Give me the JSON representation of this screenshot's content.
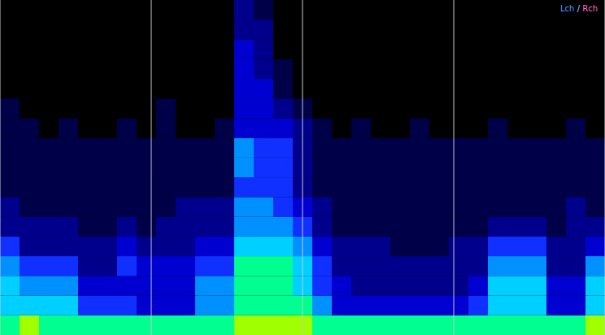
{
  "chart_data": {
    "type": "heatmap",
    "xlim": [
      0,
      4
    ],
    "xticks": [
      0,
      1,
      2,
      3,
      4
    ],
    "ylim": [
      0,
      17
    ],
    "yticks": [
      0,
      17
    ],
    "grid": "x",
    "tick_labels": false,
    "zlim": [
      0,
      10
    ],
    "colors": [
      "#000000",
      "#000048",
      "#00008c",
      "#0000d0",
      "#1030ff",
      "#0090ff",
      "#00d0ff",
      "#00ff90",
      "#a0ff00",
      "#ffff00",
      "#ff2000"
    ],
    "annotations": [
      {
        "text": "Lch",
        "color": "#4f9cff"
      },
      {
        "text": " / ",
        "color": "#c8c8ff"
      },
      {
        "text": "Rch",
        "color": "#ff6ec7"
      }
    ],
    "cells": [
      [
        7,
        8,
        7,
        7,
        7,
        7,
        7,
        7,
        7,
        7,
        7,
        7,
        8,
        8,
        8,
        8,
        7,
        7,
        7,
        7,
        7,
        7,
        7,
        7,
        7,
        7,
        7,
        7,
        7,
        7,
        8
      ],
      [
        6,
        6,
        6,
        6,
        4,
        4,
        4,
        3,
        3,
        3,
        5,
        5,
        7,
        7,
        7,
        7,
        5,
        3,
        3,
        3,
        3,
        3,
        3,
        3,
        4,
        6,
        6,
        6,
        3,
        3,
        6
      ],
      [
        6,
        5,
        5,
        5,
        3,
        3,
        3,
        3,
        3,
        3,
        5,
        5,
        7,
        7,
        7,
        6,
        4,
        3,
        2,
        2,
        2,
        2,
        2,
        2,
        3,
        6,
        6,
        6,
        3,
        3,
        6
      ],
      [
        5,
        4,
        4,
        4,
        2,
        2,
        4,
        3,
        3,
        3,
        4,
        4,
        7,
        7,
        7,
        6,
        4,
        2,
        2,
        2,
        2,
        2,
        2,
        2,
        2,
        5,
        5,
        5,
        2,
        2,
        5
      ],
      [
        4,
        2,
        2,
        2,
        2,
        2,
        3,
        2,
        2,
        2,
        3,
        3,
        6,
        6,
        6,
        5,
        3,
        2,
        2,
        2,
        1,
        1,
        1,
        2,
        2,
        4,
        4,
        4,
        2,
        2,
        3
      ],
      [
        2,
        2,
        2,
        2,
        1,
        1,
        2,
        1,
        2,
        2,
        2,
        2,
        5,
        5,
        5,
        4,
        2,
        1,
        1,
        1,
        1,
        1,
        1,
        1,
        1,
        2,
        2,
        2,
        1,
        2,
        2
      ],
      [
        2,
        1,
        1,
        1,
        1,
        1,
        1,
        1,
        1,
        2,
        2,
        2,
        5,
        5,
        4,
        3,
        2,
        1,
        1,
        1,
        1,
        1,
        1,
        1,
        1,
        1,
        1,
        1,
        1,
        2,
        1
      ],
      [
        1,
        1,
        1,
        1,
        1,
        1,
        1,
        1,
        1,
        1,
        1,
        1,
        4,
        4,
        4,
        2,
        1,
        1,
        1,
        1,
        1,
        1,
        1,
        1,
        1,
        1,
        1,
        1,
        1,
        1,
        1
      ],
      [
        1,
        1,
        1,
        1,
        1,
        1,
        1,
        1,
        1,
        1,
        1,
        1,
        5,
        4,
        4,
        2,
        1,
        1,
        1,
        1,
        1,
        1,
        1,
        1,
        1,
        1,
        1,
        1,
        1,
        1,
        1
      ],
      [
        1,
        1,
        1,
        1,
        1,
        1,
        1,
        1,
        1,
        1,
        1,
        1,
        5,
        4,
        4,
        2,
        1,
        1,
        1,
        1,
        1,
        1,
        1,
        1,
        1,
        1,
        1,
        1,
        1,
        1,
        1
      ],
      [
        1,
        1,
        0,
        1,
        0,
        0,
        1,
        0,
        1,
        0,
        0,
        1,
        3,
        3,
        3,
        2,
        1,
        0,
        1,
        0,
        0,
        1,
        0,
        0,
        0,
        1,
        0,
        0,
        0,
        1,
        0
      ],
      [
        1,
        0,
        0,
        0,
        0,
        0,
        0,
        0,
        1,
        0,
        0,
        0,
        3,
        3,
        2,
        1,
        0,
        0,
        0,
        0,
        0,
        0,
        0,
        0,
        0,
        0,
        0,
        0,
        0,
        0,
        0
      ],
      [
        0,
        0,
        0,
        0,
        0,
        0,
        0,
        0,
        0,
        0,
        0,
        0,
        3,
        3,
        1,
        0,
        0,
        0,
        0,
        0,
        0,
        0,
        0,
        0,
        0,
        0,
        0,
        0,
        0,
        0,
        0
      ],
      [
        0,
        0,
        0,
        0,
        0,
        0,
        0,
        0,
        0,
        0,
        0,
        0,
        3,
        2,
        1,
        0,
        0,
        0,
        0,
        0,
        0,
        0,
        0,
        0,
        0,
        0,
        0,
        0,
        0,
        0,
        0
      ],
      [
        0,
        0,
        0,
        0,
        0,
        0,
        0,
        0,
        0,
        0,
        0,
        0,
        3,
        2,
        0,
        0,
        0,
        0,
        0,
        0,
        0,
        0,
        0,
        0,
        0,
        0,
        0,
        0,
        0,
        0,
        0
      ],
      [
        0,
        0,
        0,
        0,
        0,
        0,
        0,
        0,
        0,
        0,
        0,
        0,
        2,
        2,
        0,
        0,
        0,
        0,
        0,
        0,
        0,
        0,
        0,
        0,
        0,
        0,
        0,
        0,
        0,
        0,
        0
      ],
      [
        0,
        0,
        0,
        0,
        0,
        0,
        0,
        0,
        0,
        0,
        0,
        0,
        2,
        1,
        0,
        0,
        0,
        0,
        0,
        0,
        0,
        0,
        0,
        0,
        0,
        0,
        0,
        0,
        0,
        0,
        0
      ]
    ]
  }
}
